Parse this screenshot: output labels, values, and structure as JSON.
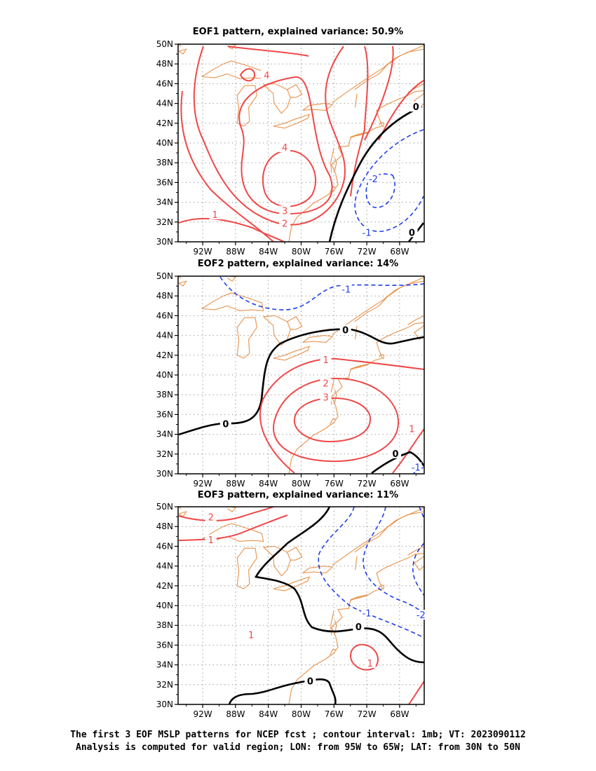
{
  "panels": [
    {
      "title": "EOF1 pattern, explained variance: 50.9%",
      "lat_ticks": [
        "50N",
        "48N",
        "46N",
        "44N",
        "42N",
        "40N",
        "38N",
        "36N",
        "34N",
        "32N",
        "30N"
      ],
      "lon_ticks": [
        "92W",
        "88W",
        "84W",
        "80W",
        "76W",
        "72W",
        "68W"
      ],
      "contour_labels": [
        {
          "text": "4",
          "lon": -84.2,
          "lat": 46.8,
          "kind": "pos"
        },
        {
          "text": "4",
          "lon": -82.0,
          "lat": 39.5,
          "kind": "pos"
        },
        {
          "text": "3",
          "lon": -82.0,
          "lat": 33.1,
          "kind": "pos"
        },
        {
          "text": "2",
          "lon": -82.0,
          "lat": 31.8,
          "kind": "pos"
        },
        {
          "text": "1",
          "lon": -90.5,
          "lat": 32.7,
          "kind": "pos"
        },
        {
          "text": "-2",
          "lon": -71.2,
          "lat": 36.3,
          "kind": "neg"
        },
        {
          "text": "-1",
          "lon": -72.0,
          "lat": 30.9,
          "kind": "neg"
        },
        {
          "text": "0",
          "lon": -66.0,
          "lat": 43.6,
          "kind": "zero"
        },
        {
          "text": "0",
          "lon": -66.5,
          "lat": 30.9,
          "kind": "zero"
        }
      ]
    },
    {
      "title": "EOF2 pattern, explained variance: 14%",
      "lat_ticks": [
        "50N",
        "48N",
        "46N",
        "44N",
        "42N",
        "40N",
        "38N",
        "36N",
        "34N",
        "32N",
        "30N"
      ],
      "lon_ticks": [
        "92W",
        "88W",
        "84W",
        "80W",
        "76W",
        "72W",
        "68W"
      ],
      "contour_labels": [
        {
          "text": "-1",
          "lon": -74.5,
          "lat": 48.6,
          "kind": "neg"
        },
        {
          "text": "0",
          "lon": -74.6,
          "lat": 44.5,
          "kind": "zero"
        },
        {
          "text": "1",
          "lon": -77.0,
          "lat": 41.5,
          "kind": "pos"
        },
        {
          "text": "2",
          "lon": -77.0,
          "lat": 39.1,
          "kind": "pos"
        },
        {
          "text": "3",
          "lon": -77.0,
          "lat": 37.7,
          "kind": "pos"
        },
        {
          "text": "0",
          "lon": -89.2,
          "lat": 35.0,
          "kind": "zero"
        },
        {
          "text": "1",
          "lon": -66.5,
          "lat": 34.5,
          "kind": "pos"
        },
        {
          "text": "0",
          "lon": -68.5,
          "lat": 32.0,
          "kind": "zero"
        },
        {
          "text": "-1",
          "lon": -66.0,
          "lat": 30.6,
          "kind": "neg"
        }
      ]
    },
    {
      "title": "EOF3 pattern, explained variance: 11%",
      "lat_ticks": [
        "50N",
        "48N",
        "46N",
        "44N",
        "42N",
        "40N",
        "38N",
        "36N",
        "34N",
        "32N",
        "30N"
      ],
      "lon_ticks": [
        "92W",
        "88W",
        "84W",
        "80W",
        "76W",
        "72W",
        "68W"
      ],
      "contour_labels": [
        {
          "text": "2",
          "lon": -91.0,
          "lat": 48.9,
          "kind": "pos"
        },
        {
          "text": "1",
          "lon": -91.0,
          "lat": 46.6,
          "kind": "pos"
        },
        {
          "text": "1",
          "lon": -86.1,
          "lat": 37.0,
          "kind": "pos"
        },
        {
          "text": "0",
          "lon": -73.0,
          "lat": 37.8,
          "kind": "zero"
        },
        {
          "text": "-1",
          "lon": -72.0,
          "lat": 39.2,
          "kind": "neg"
        },
        {
          "text": "1",
          "lon": -71.6,
          "lat": 34.1,
          "kind": "pos"
        },
        {
          "text": "0",
          "lon": -78.9,
          "lat": 32.3,
          "kind": "zero"
        },
        {
          "text": "-2",
          "lon": -65.4,
          "lat": 39.0,
          "kind": "neg"
        }
      ]
    }
  ],
  "colors": {
    "positive": "#f04848",
    "negative": "#1e3ee8",
    "zero": "#000000",
    "coastline": "#e8924a",
    "grid": "#a0a0a0"
  },
  "footer": {
    "line1": "The first 3 EOF MSLP patterns for NCEP fcst ; contour interval: 1mb; VT: 2023090112",
    "line2": "Analysis is computed for valid region; LON: from 95W to 65W; LAT: from 30N to 50N"
  }
}
